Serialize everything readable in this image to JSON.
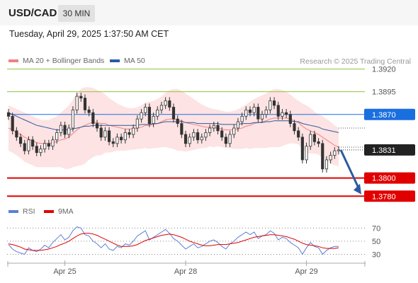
{
  "header": {
    "pair": "USD/CAD",
    "timeframe": "30 MIN"
  },
  "timestamp": "Tuesday, April 29, 2025 1:37:50 AM CET",
  "legend": {
    "ma": {
      "label": "MA 20 + Bollinger Bands",
      "color": "#f08080"
    },
    "ma50": {
      "label": "MA 50",
      "color": "#2c5aa0"
    }
  },
  "copyright": "Research © 2025 Trading Central",
  "rsi_legend": {
    "rsi": {
      "label": "RSI",
      "color": "#5b7fd6"
    },
    "ma9": {
      "label": "9MA",
      "color": "#e00000"
    }
  },
  "chart_data": [
    {
      "type": "candlestick",
      "title": "USD/CAD 30 MIN",
      "ylim": [
        1.3774,
        1.3922
      ],
      "current_price": 1.3831,
      "levels": [
        {
          "value": 1.392,
          "label": "1.3920",
          "color": "#8dc63f",
          "style": "resistance"
        },
        {
          "value": 1.3895,
          "label": "1.3895",
          "color": "#8dc63f",
          "style": "resistance"
        },
        {
          "value": 1.387,
          "label": "1.3870",
          "color": "#1a6fdf",
          "style": "pivot"
        },
        {
          "value": 1.38,
          "label": "1.3800",
          "color": "#e00000",
          "style": "support"
        },
        {
          "value": 1.378,
          "label": "1.3780",
          "color": "#e00000",
          "style": "support"
        }
      ],
      "current_label": "1.3831",
      "x_ticks": [
        "Apr 25",
        "Apr 28",
        "Apr 29"
      ],
      "tick_positions": [
        14,
        44,
        74
      ],
      "close": [
        1.3868,
        1.3852,
        1.3845,
        1.3838,
        1.383,
        1.3842,
        1.3835,
        1.3828,
        1.3832,
        1.3838,
        1.3835,
        1.3842,
        1.385,
        1.3858,
        1.3848,
        1.3855,
        1.3875,
        1.389,
        1.3888,
        1.3875,
        1.3872,
        1.386,
        1.3855,
        1.3845,
        1.3852,
        1.384,
        1.3838,
        1.3845,
        1.3842,
        1.385,
        1.3848,
        1.3855,
        1.3865,
        1.3872,
        1.3878,
        1.386,
        1.3868,
        1.3875,
        1.388,
        1.3885,
        1.3878,
        1.3865,
        1.386,
        1.3848,
        1.3838,
        1.3845,
        1.385,
        1.3842,
        1.3845,
        1.385,
        1.3855,
        1.3858,
        1.3852,
        1.3845,
        1.3838,
        1.3848,
        1.3855,
        1.3862,
        1.3868,
        1.3875,
        1.3872,
        1.3878,
        1.3865,
        1.387,
        1.3875,
        1.3885,
        1.388,
        1.3868,
        1.3872,
        1.387,
        1.386,
        1.3852,
        1.3845,
        1.382,
        1.3835,
        1.3848,
        1.384,
        1.3838,
        1.381,
        1.382,
        1.3825,
        1.383,
        1.3831
      ],
      "ma20": [
        1.3855,
        1.3853,
        1.385,
        1.3848,
        1.3845,
        1.3843,
        1.3841,
        1.3839,
        1.3838,
        1.3838,
        1.3838,
        1.3839,
        1.384,
        1.3842,
        1.3843,
        1.3845,
        1.3849,
        1.3853,
        1.3856,
        1.3858,
        1.386,
        1.3861,
        1.3861,
        1.386,
        1.386,
        1.3858,
        1.3857,
        1.3856,
        1.3855,
        1.3854,
        1.3854,
        1.3854,
        1.3855,
        1.3856,
        1.3858,
        1.3858,
        1.3859,
        1.386,
        1.3862,
        1.3864,
        1.3865,
        1.3865,
        1.3864,
        1.3863,
        1.3861,
        1.386,
        1.3859,
        1.3858,
        1.3857,
        1.3856,
        1.3856,
        1.3855,
        1.3855,
        1.3854,
        1.3853,
        1.3853,
        1.3853,
        1.3854,
        1.3855,
        1.3857,
        1.3858,
        1.386,
        1.3861,
        1.3862,
        1.3863,
        1.3865,
        1.3866,
        1.3866,
        1.3866,
        1.3866,
        1.3865,
        1.3863,
        1.3861,
        1.3857,
        1.3854,
        1.3852,
        1.385,
        1.3848,
        1.3845,
        1.3842,
        1.3839,
        1.3836,
        1.3834
      ],
      "bb_upper": [
        1.388,
        1.3878,
        1.3876,
        1.3874,
        1.3872,
        1.387,
        1.3868,
        1.3866,
        1.3864,
        1.3864,
        1.3864,
        1.3866,
        1.3868,
        1.3872,
        1.3876,
        1.388,
        1.3886,
        1.3893,
        1.3898,
        1.39,
        1.39,
        1.3899,
        1.3897,
        1.3895,
        1.3892,
        1.3888,
        1.3885,
        1.3882,
        1.388,
        1.3878,
        1.3877,
        1.3877,
        1.3878,
        1.388,
        1.3883,
        1.3884,
        1.3885,
        1.3887,
        1.389,
        1.3894,
        1.3897,
        1.3898,
        1.3898,
        1.3896,
        1.3893,
        1.389,
        1.3887,
        1.3884,
        1.3881,
        1.3879,
        1.3877,
        1.3876,
        1.3875,
        1.3874,
        1.3873,
        1.3873,
        1.3874,
        1.3876,
        1.3878,
        1.3881,
        1.3884,
        1.3887,
        1.3889,
        1.3891,
        1.3893,
        1.3896,
        1.3898,
        1.3898,
        1.3897,
        1.3895,
        1.3892,
        1.3888,
        1.3885,
        1.3882,
        1.388,
        1.3877,
        1.3873,
        1.387,
        1.3868,
        1.3865,
        1.3862,
        1.3858,
        1.3855
      ],
      "bb_lower": [
        1.383,
        1.3828,
        1.3825,
        1.3822,
        1.3818,
        1.3816,
        1.3814,
        1.3812,
        1.3812,
        1.3812,
        1.3812,
        1.3812,
        1.3812,
        1.3812,
        1.381,
        1.381,
        1.3812,
        1.3813,
        1.3814,
        1.3816,
        1.382,
        1.3823,
        1.3825,
        1.3825,
        1.3828,
        1.3828,
        1.3829,
        1.383,
        1.383,
        1.383,
        1.3831,
        1.3831,
        1.3832,
        1.3832,
        1.3833,
        1.3832,
        1.3833,
        1.3833,
        1.3834,
        1.3834,
        1.3833,
        1.3832,
        1.383,
        1.383,
        1.3829,
        1.383,
        1.3831,
        1.3832,
        1.3833,
        1.3833,
        1.3835,
        1.3834,
        1.3835,
        1.3834,
        1.3833,
        1.3833,
        1.3832,
        1.3832,
        1.3832,
        1.3833,
        1.3832,
        1.3833,
        1.3833,
        1.3833,
        1.3833,
        1.3834,
        1.3834,
        1.3834,
        1.3835,
        1.3837,
        1.3838,
        1.3838,
        1.3837,
        1.3832,
        1.3828,
        1.3827,
        1.3827,
        1.3826,
        1.3822,
        1.3819,
        1.3816,
        1.3814,
        1.3813
      ],
      "ma50": [
        1.3872,
        1.387,
        1.3868,
        1.3866,
        1.3864,
        1.3862,
        1.386,
        1.3858,
        1.3857,
        1.3856,
        1.3855,
        1.3854,
        1.3853,
        1.3853,
        1.3853,
        1.3853,
        1.3854,
        1.3855,
        1.3856,
        1.3857,
        1.3857,
        1.3858,
        1.3858,
        1.3858,
        1.3858,
        1.3858,
        1.3858,
        1.3858,
        1.3858,
        1.3858,
        1.3858,
        1.3858,
        1.3858,
        1.3859,
        1.3859,
        1.3859,
        1.386,
        1.386,
        1.3861,
        1.3862,
        1.3862,
        1.3862,
        1.3862,
        1.3862,
        1.3861,
        1.3861,
        1.3861,
        1.386,
        1.386,
        1.386,
        1.386,
        1.386,
        1.386,
        1.3859,
        1.3859,
        1.3859,
        1.3859,
        1.3859,
        1.386,
        1.386,
        1.386,
        1.3861,
        1.3861,
        1.3861,
        1.3862,
        1.3862,
        1.3863,
        1.3863,
        1.3863,
        1.3863,
        1.3863,
        1.3862,
        1.3862,
        1.386,
        1.3859,
        1.3858,
        1.3857,
        1.3856,
        1.3854,
        1.3853,
        1.3852,
        1.3851,
        1.385
      ]
    },
    {
      "type": "line",
      "title": "RSI",
      "ylim": [
        24,
        78
      ],
      "y_ticks": [
        30,
        50,
        70
      ],
      "x_ticks": [
        "Apr 25",
        "Apr 28",
        "Apr 29"
      ],
      "series": [
        {
          "name": "RSI",
          "color": "#5b7fd6",
          "values": [
            45,
            38,
            34,
            32,
            30,
            40,
            36,
            34,
            38,
            44,
            40,
            48,
            54,
            60,
            52,
            56,
            66,
            72,
            70,
            60,
            58,
            50,
            46,
            40,
            46,
            38,
            36,
            42,
            40,
            46,
            44,
            50,
            58,
            62,
            66,
            52,
            56,
            60,
            64,
            68,
            62,
            54,
            50,
            44,
            38,
            42,
            46,
            40,
            42,
            46,
            50,
            52,
            48,
            42,
            38,
            46,
            50,
            56,
            60,
            64,
            60,
            64,
            54,
            58,
            60,
            66,
            62,
            52,
            56,
            54,
            48,
            44,
            40,
            30,
            40,
            48,
            42,
            40,
            30,
            36,
            40,
            42,
            42
          ]
        },
        {
          "name": "9MA",
          "color": "#e00000",
          "values": [
            46,
            45,
            43,
            41,
            38,
            37,
            36,
            36,
            36,
            37,
            38,
            40,
            42,
            45,
            47,
            50,
            54,
            58,
            61,
            62,
            62,
            61,
            59,
            56,
            53,
            50,
            47,
            44,
            42,
            42,
            42,
            43,
            45,
            48,
            51,
            53,
            55,
            57,
            59,
            60,
            61,
            60,
            58,
            56,
            53,
            50,
            48,
            46,
            44,
            43,
            43,
            44,
            45,
            45,
            45,
            46,
            47,
            48,
            50,
            52,
            54,
            56,
            57,
            58,
            59,
            60,
            60,
            59,
            58,
            57,
            55,
            53,
            50,
            47,
            45,
            44,
            43,
            42,
            40,
            39,
            39,
            39,
            40
          ]
        }
      ]
    }
  ]
}
